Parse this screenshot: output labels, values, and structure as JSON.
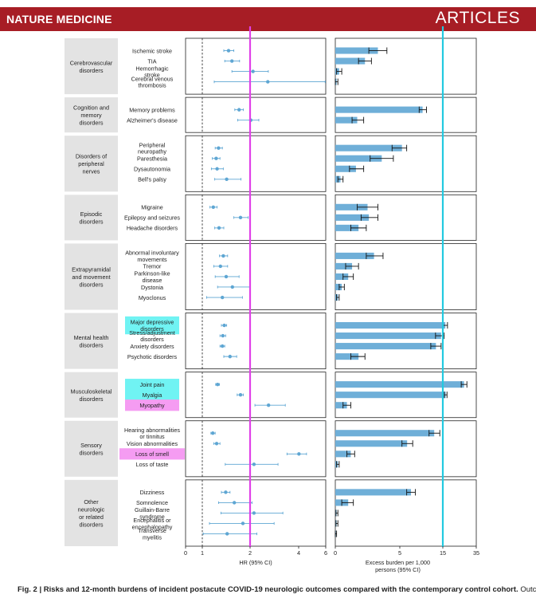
{
  "header": {
    "journal": "NATURE MEDICINE",
    "section": "ARTICLES"
  },
  "caption": {
    "label": "Fig. 2 | Risks and 12-month burdens of incident postacute COVID-19 neurologic outcomes compared with the contemporary control cohort.",
    "text": "Outcomes"
  },
  "chart_data": {
    "type": "forest-plot-and-bar",
    "groups": [
      {
        "name": "Cerebrovascular disorders",
        "lines": [
          "Cerebrovascular",
          "disorders"
        ],
        "outcomes": [
          {
            "label": [
              "Ischemic stroke"
            ],
            "hr": 1.55,
            "hr_ci": [
              1.45,
              1.66
            ],
            "burden": 3.3,
            "burden_ci": [
              2.6,
              4.0
            ]
          },
          {
            "label": [
              "TIA"
            ],
            "hr": 1.62,
            "hr_ci": [
              1.47,
              1.78
            ],
            "burden": 2.3,
            "burden_ci": [
              1.8,
              2.8
            ]
          },
          {
            "label": [
              "Hemorrhagic",
              "stroke"
            ],
            "hr": 2.12,
            "hr_ci": [
              1.62,
              2.75
            ],
            "burden": 0.3,
            "burden_ci": [
              0.1,
              0.5
            ]
          },
          {
            "label": [
              "Cerebral venous",
              "thrombosis"
            ],
            "hr": 2.73,
            "hr_ci": [
              1.25,
              5.96
            ],
            "burden": 0.1,
            "burden_ci": [
              0.0,
              0.2
            ]
          }
        ]
      },
      {
        "name": "Cognition and memory disorders",
        "lines": [
          "Cognition and",
          "memory",
          "disorders"
        ],
        "outcomes": [
          {
            "label": [
              "Memory problems"
            ],
            "hr": 1.77,
            "hr_ci": [
              1.68,
              1.86
            ],
            "burden": 10.3,
            "burden_ci": [
              9.5,
              11.2
            ]
          },
          {
            "label": [
              "Alzheimer's disease"
            ],
            "hr": 2.03,
            "hr_ci": [
              1.74,
              2.36
            ],
            "burden": 1.7,
            "burden_ci": [
              1.3,
              2.2
            ]
          }
        ]
      },
      {
        "name": "Disorders of peripheral nerves",
        "lines": [
          "Disorders of",
          "peripheral",
          "nerves"
        ],
        "outcomes": [
          {
            "label": [
              "Peripheral",
              "neuropathy"
            ],
            "hr": 1.34,
            "hr_ci": [
              1.27,
              1.42
            ],
            "burden": 5.5,
            "burden_ci": [
              4.4,
              6.6
            ]
          },
          {
            "label": [
              "Paresthesia"
            ],
            "hr": 1.29,
            "hr_ci": [
              1.21,
              1.37
            ],
            "burden": 3.6,
            "burden_ci": [
              2.7,
              4.5
            ]
          },
          {
            "label": [
              "Dysautonomia"
            ],
            "hr": 1.31,
            "hr_ci": [
              1.19,
              1.44
            ],
            "burden": 1.6,
            "burden_ci": [
              1.1,
              2.2
            ]
          },
          {
            "label": [
              "Bell's palsy"
            ],
            "hr": 1.51,
            "hr_ci": [
              1.26,
              1.81
            ],
            "burden": 0.4,
            "burden_ci": [
              0.2,
              0.6
            ]
          }
        ]
      },
      {
        "name": "Episodic disorders",
        "lines": [
          "Episodic",
          "disorders"
        ],
        "outcomes": [
          {
            "label": [
              "Migraine"
            ],
            "hr": 1.23,
            "hr_ci": [
              1.16,
              1.31
            ],
            "burden": 2.5,
            "burden_ci": [
              1.7,
              3.3
            ]
          },
          {
            "label": [
              "Epilepsy and seizures"
            ],
            "hr": 1.8,
            "hr_ci": [
              1.66,
              1.96
            ],
            "burden": 2.6,
            "burden_ci": [
              2.0,
              3.3
            ]
          },
          {
            "label": [
              "Headache disorders"
            ],
            "hr": 1.35,
            "hr_ci": [
              1.26,
              1.45
            ],
            "burden": 1.8,
            "burden_ci": [
              1.2,
              2.4
            ]
          }
        ]
      },
      {
        "name": "Extrapyramidal and movement disorders",
        "lines": [
          "Extrapyramidal",
          "and movement",
          "disorders"
        ],
        "outcomes": [
          {
            "label": [
              "Abnormal involuntary",
              "movements"
            ],
            "hr": 1.44,
            "hr_ci": [
              1.36,
              1.53
            ],
            "burden": 3.0,
            "burden_ci": [
              2.4,
              3.7
            ]
          },
          {
            "label": [
              "Tremor"
            ],
            "hr": 1.38,
            "hr_ci": [
              1.24,
              1.53
            ],
            "burden": 1.3,
            "burden_ci": [
              0.8,
              1.8
            ]
          },
          {
            "label": [
              "Parkinson-like",
              "disease"
            ],
            "hr": 1.5,
            "hr_ci": [
              1.27,
              1.77
            ],
            "burden": 1.0,
            "burden_ci": [
              0.6,
              1.4
            ]
          },
          {
            "label": [
              "Dystonia"
            ],
            "hr": 1.63,
            "hr_ci": [
              1.32,
              2.0
            ],
            "burden": 0.5,
            "burden_ci": [
              0.3,
              0.7
            ]
          },
          {
            "label": [
              "Myoclonus"
            ],
            "hr": 1.42,
            "hr_ci": [
              1.09,
              1.84
            ],
            "burden": 0.2,
            "burden_ci": [
              0.1,
              0.3
            ]
          }
        ]
      },
      {
        "name": "Mental health disorders",
        "lines": [
          "Mental health",
          "disorders"
        ],
        "outcomes": [
          {
            "label": [
              "Major depressive",
              "disorders"
            ],
            "hr": 1.46,
            "hr_ci": [
              1.4,
              1.51
            ],
            "burden": 16.5,
            "burden_ci": [
              15.2,
              17.8
            ]
          },
          {
            "label": [
              "Stress/adjustment",
              "disorders"
            ],
            "hr": 1.43,
            "hr_ci": [
              1.37,
              1.49
            ],
            "burden": 14.6,
            "burden_ci": [
              13.3,
              15.8
            ]
          },
          {
            "label": [
              "Anxiety disorders"
            ],
            "hr": 1.42,
            "hr_ci": [
              1.37,
              1.47
            ],
            "burden": 13.4,
            "burden_ci": [
              12.2,
              14.6
            ]
          },
          {
            "label": [
              "Psychotic disorders"
            ],
            "hr": 1.58,
            "hr_ci": [
              1.45,
              1.72
            ],
            "burden": 1.8,
            "burden_ci": [
              1.2,
              2.3
            ]
          }
        ]
      },
      {
        "name": "Musculoskeletal disorders",
        "lines": [
          "Musculoskeletal",
          "disorders"
        ],
        "outcomes": [
          {
            "label": [
              "Joint pain"
            ],
            "hr": 1.32,
            "hr_ci": [
              1.28,
              1.36
            ],
            "burden": 27.7,
            "burden_ci": [
              26.0,
              29.4
            ]
          },
          {
            "label": [
              "Myalgia"
            ],
            "hr": 1.8,
            "hr_ci": [
              1.73,
              1.86
            ],
            "burden": 16.7,
            "burden_ci": [
              15.9,
              17.5
            ]
          },
          {
            "label": [
              "Myopathy"
            ],
            "hr": 2.76,
            "hr_ci": [
              2.2,
              3.45
            ],
            "burden": 0.9,
            "burden_ci": [
              0.6,
              1.2
            ]
          }
        ]
      },
      {
        "name": "Sensory disorders",
        "lines": [
          "Sensory",
          "disorders"
        ],
        "outcomes": [
          {
            "label": [
              "Hearing abnormalities",
              "or tinnitus"
            ],
            "hr": 1.22,
            "hr_ci": [
              1.18,
              1.27
            ],
            "burden": 13.0,
            "burden_ci": [
              11.8,
              14.3
            ]
          },
          {
            "label": [
              "Vision abnormalities"
            ],
            "hr": 1.3,
            "hr_ci": [
              1.24,
              1.37
            ],
            "burden": 6.7,
            "burden_ci": [
              5.5,
              8.0
            ]
          },
          {
            "label": [
              "Loss of smell"
            ],
            "hr": 4.02,
            "hr_ci": [
              3.52,
              4.58
            ],
            "burden": 1.2,
            "burden_ci": [
              0.9,
              1.5
            ]
          },
          {
            "label": [
              "Loss of taste"
            ],
            "hr": 2.16,
            "hr_ci": [
              1.48,
              3.15
            ],
            "burden": 0.2,
            "burden_ci": [
              0.1,
              0.3
            ]
          }
        ]
      },
      {
        "name": "Other neurologic or related disorders",
        "lines": [
          "Other",
          "neurologic",
          "or related",
          "disorders"
        ],
        "outcomes": [
          {
            "label": [
              "Dizziness"
            ],
            "hr": 1.49,
            "hr_ci": [
              1.4,
              1.58
            ],
            "burden": 7.6,
            "burden_ci": [
              6.6,
              8.6
            ]
          },
          {
            "label": [
              "Somnolence"
            ],
            "hr": 1.67,
            "hr_ci": [
              1.34,
              2.08
            ],
            "burden": 1.0,
            "burden_ci": [
              0.5,
              1.4
            ]
          },
          {
            "label": [
              "Guillain-Barre",
              "syndrome"
            ],
            "hr": 2.16,
            "hr_ci": [
              1.39,
              3.35
            ],
            "burden": 0.1,
            "burden_ci": [
              0.05,
              0.2
            ]
          },
          {
            "label": [
              "Encephalitis or",
              "encephalopathy"
            ],
            "hr": 1.85,
            "hr_ci": [
              1.15,
              2.99
            ],
            "burden": 0.1,
            "burden_ci": [
              0.05,
              0.2
            ]
          },
          {
            "label": [
              "Transverse",
              "myelitis"
            ],
            "hr": 1.52,
            "hr_ci": [
              1.02,
              2.28
            ],
            "burden": 0.05,
            "burden_ci": [
              0.0,
              0.1
            ]
          }
        ]
      }
    ],
    "hr_axis": {
      "label": "HR (95% CI)",
      "lim": [
        0,
        6
      ],
      "ticks": [
        0,
        1,
        2,
        4,
        6
      ],
      "tick_labels": [
        "0",
        "1",
        "2",
        "4",
        "6"
      ],
      "reference_line": 1
    },
    "burden_axis": {
      "label": [
        "Excess burden per 1,000",
        "persons (95% CI)"
      ],
      "lim": [
        0,
        35
      ],
      "ticks": [
        0,
        5,
        15,
        35
      ],
      "tick_labels": [
        "0",
        "5",
        "15",
        "35"
      ]
    },
    "highlights": {
      "hr_vertical_line": {
        "value": 2,
        "color": "#e040e8"
      },
      "burden_vertical_line": {
        "value": 15,
        "color": "#22c9e0"
      },
      "cyan_label_highlights": [
        "Major depressive disorders",
        "Joint pain",
        "Myalgia"
      ],
      "magenta_label_highlights": [
        "Myopathy",
        "Loss of smell"
      ]
    },
    "colors": {
      "point": "#5ea6d3",
      "bar": "#6fafd8",
      "header": "#a71d25",
      "cyan_highlight": "#70f3f3",
      "magenta_highlight": "#f59cf2"
    }
  }
}
